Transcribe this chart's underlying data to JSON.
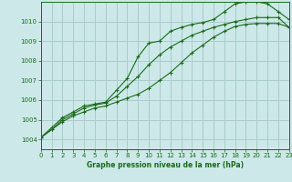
{
  "title": "Graphe pression niveau de la mer (hPa)",
  "bg_color": "#cce8e8",
  "grid_color": "#aacccc",
  "line_color": "#1a6b1a",
  "xlim": [
    0,
    23
  ],
  "ylim": [
    1003.5,
    1011.0
  ],
  "yticks": [
    1004,
    1005,
    1006,
    1007,
    1008,
    1009,
    1010
  ],
  "xticks": [
    0,
    1,
    2,
    3,
    4,
    5,
    6,
    7,
    8,
    9,
    10,
    11,
    12,
    13,
    14,
    15,
    16,
    17,
    18,
    19,
    20,
    21,
    22,
    23
  ],
  "series1": {
    "x": [
      0,
      1,
      2,
      3,
      4,
      5,
      6,
      7,
      8,
      9,
      10,
      11,
      12,
      13,
      14,
      15,
      16,
      17,
      18,
      19,
      20,
      21,
      22,
      23
    ],
    "y": [
      1004.1,
      1004.6,
      1005.1,
      1005.4,
      1005.7,
      1005.8,
      1005.9,
      1006.5,
      1007.1,
      1008.2,
      1008.9,
      1009.0,
      1009.5,
      1009.7,
      1009.85,
      1009.95,
      1010.1,
      1010.5,
      1010.9,
      1011.0,
      1011.0,
      1010.9,
      1010.5,
      1010.1
    ]
  },
  "series2": {
    "x": [
      0,
      1,
      2,
      3,
      4,
      5,
      6,
      7,
      8,
      9,
      10,
      11,
      12,
      13,
      14,
      15,
      16,
      17,
      18,
      19,
      20,
      21,
      22,
      23
    ],
    "y": [
      1004.1,
      1004.5,
      1005.0,
      1005.3,
      1005.6,
      1005.75,
      1005.85,
      1006.2,
      1006.7,
      1007.2,
      1007.8,
      1008.3,
      1008.7,
      1009.0,
      1009.3,
      1009.5,
      1009.7,
      1009.85,
      1010.0,
      1010.1,
      1010.2,
      1010.2,
      1010.2,
      1009.7
    ]
  },
  "series3": {
    "x": [
      0,
      1,
      2,
      3,
      4,
      5,
      6,
      7,
      8,
      9,
      10,
      11,
      12,
      13,
      14,
      15,
      16,
      17,
      18,
      19,
      20,
      21,
      22,
      23
    ],
    "y": [
      1004.1,
      1004.5,
      1004.9,
      1005.2,
      1005.4,
      1005.6,
      1005.7,
      1005.9,
      1006.1,
      1006.3,
      1006.6,
      1007.0,
      1007.4,
      1007.9,
      1008.4,
      1008.8,
      1009.2,
      1009.5,
      1009.75,
      1009.85,
      1009.9,
      1009.9,
      1009.9,
      1009.7
    ]
  }
}
